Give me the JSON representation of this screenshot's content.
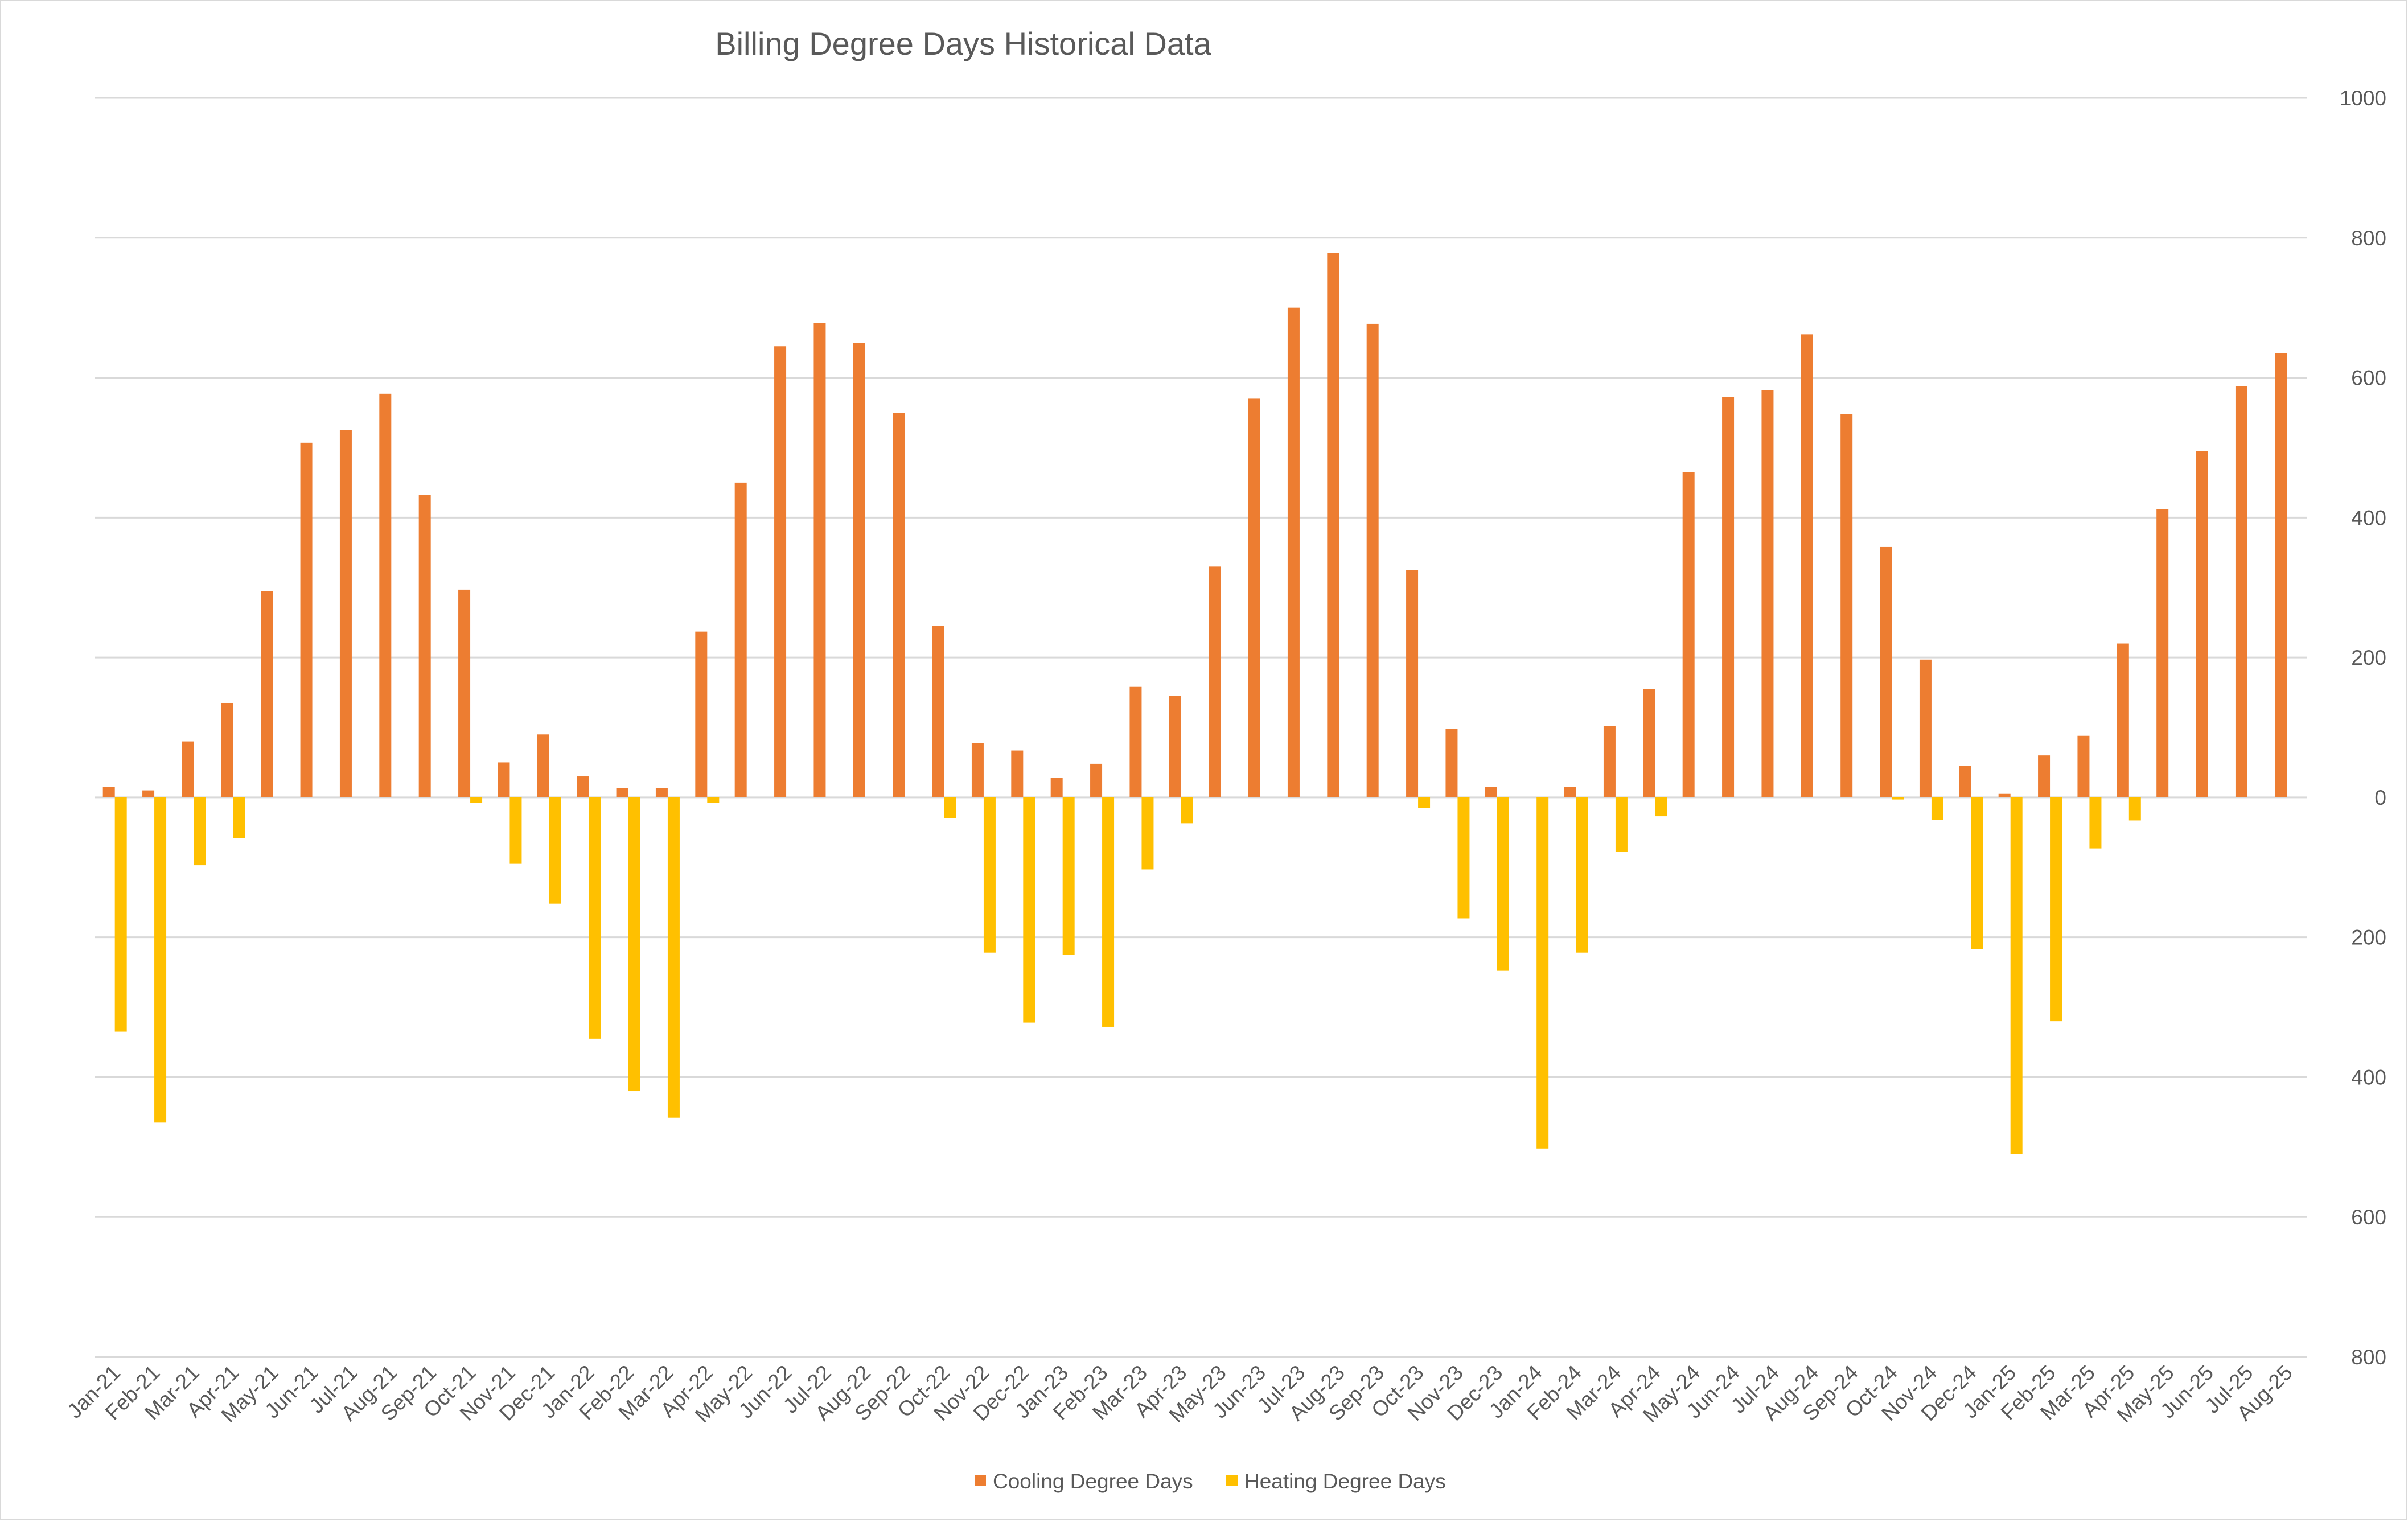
{
  "chart_data": {
    "type": "bar",
    "title": "Billing Degree Days Historical Data",
    "xlabel": "",
    "ylabel": "",
    "ylim": [
      -800,
      1000
    ],
    "y_ticks": [
      1000,
      800,
      600,
      400,
      200,
      0,
      -200,
      -400,
      -600,
      -800
    ],
    "y_tick_labels": [
      "1000",
      "800",
      "600",
      "400",
      "200",
      "0",
      "200",
      "400",
      "600",
      "800"
    ],
    "y_axis_side": "right",
    "grid": true,
    "legend_position": "bottom",
    "categories": [
      "Jan-21",
      "Feb-21",
      "Mar-21",
      "Apr-21",
      "May-21",
      "Jun-21",
      "Jul-21",
      "Aug-21",
      "Sep-21",
      "Oct-21",
      "Nov-21",
      "Dec-21",
      "Jan-22",
      "Feb-22",
      "Mar-22",
      "Apr-22",
      "May-22",
      "Jun-22",
      "Jul-22",
      "Aug-22",
      "Sep-22",
      "Oct-22",
      "Nov-22",
      "Dec-22",
      "Jan-23",
      "Feb-23",
      "Mar-23",
      "Apr-23",
      "May-23",
      "Jun-23",
      "Jul-23",
      "Aug-23",
      "Sep-23",
      "Oct-23",
      "Nov-23",
      "Dec-23",
      "Jan-24",
      "Feb-24",
      "Mar-24",
      "Apr-24",
      "May-24",
      "Jun-24",
      "Jul-24",
      "Aug-24",
      "Sep-24",
      "Oct-24",
      "Nov-24",
      "Dec-24",
      "Jan-25",
      "Feb-25",
      "Mar-25",
      "Apr-25",
      "May-25",
      "Jun-25",
      "Jul-25",
      "Aug-25"
    ],
    "series": [
      {
        "name": "Cooling Degree Days",
        "color": "#ED7D31",
        "values": [
          15,
          10,
          80,
          135,
          295,
          507,
          525,
          577,
          432,
          297,
          50,
          90,
          30,
          13,
          13,
          237,
          450,
          645,
          678,
          650,
          550,
          245,
          78,
          67,
          28,
          48,
          158,
          145,
          330,
          570,
          700,
          778,
          677,
          325,
          98,
          15,
          0,
          15,
          102,
          155,
          465,
          572,
          582,
          662,
          548,
          358,
          197,
          45,
          5,
          60,
          88,
          220,
          412,
          495,
          588,
          635
        ]
      },
      {
        "name": "Heating Degree Days",
        "color": "#FFC000",
        "values": [
          -335,
          -465,
          -97,
          -58,
          0,
          0,
          0,
          0,
          0,
          -8,
          -95,
          -152,
          -345,
          -420,
          -458,
          -8,
          0,
          0,
          0,
          0,
          0,
          -30,
          -222,
          -322,
          -225,
          -328,
          -103,
          -37,
          0,
          0,
          0,
          0,
          0,
          -15,
          -173,
          -248,
          -502,
          -222,
          -78,
          -27,
          0,
          0,
          0,
          0,
          0,
          -3,
          -32,
          -217,
          -510,
          -320,
          -73,
          -33,
          0,
          0,
          0,
          0
        ]
      }
    ]
  }
}
